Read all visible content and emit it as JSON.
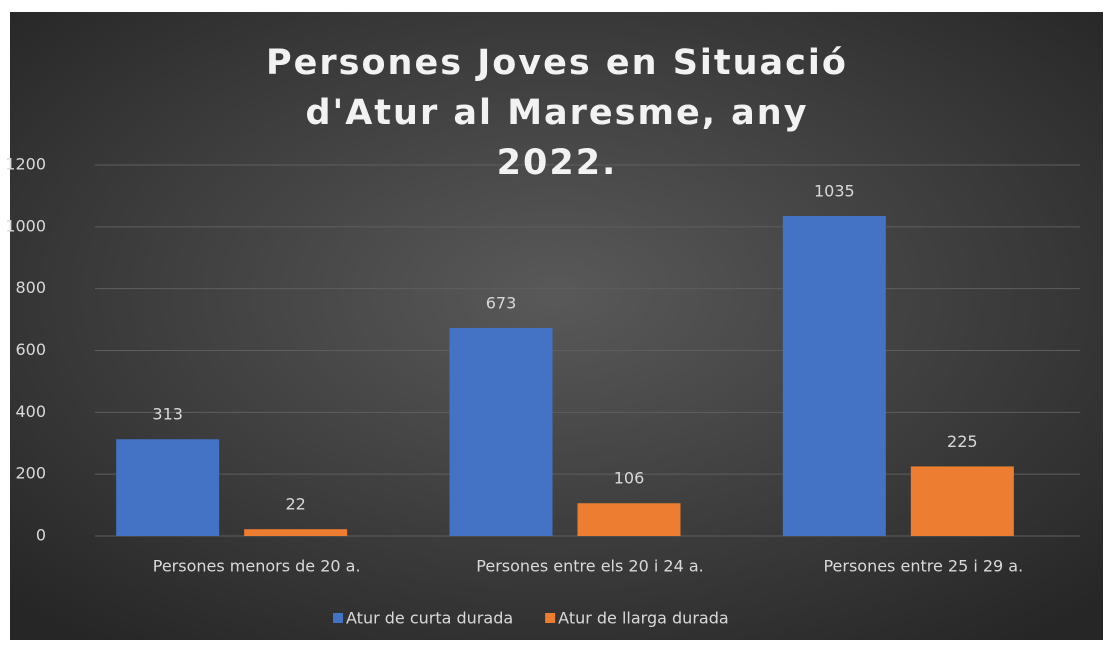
{
  "chart_data": {
    "type": "bar",
    "title": "Persones Joves en Situació d'Atur al Maresme, any 2022.",
    "categories": [
      "Persones menors de 20 a.",
      "Persones entre els 20 i 24 a.",
      "Persones entre 25 i 29 a."
    ],
    "series": [
      {
        "name": "Atur de curta durada",
        "color": "#4472c4",
        "values": [
          313,
          673,
          1035
        ]
      },
      {
        "name": "Atur de llarga durada",
        "color": "#ed7d31",
        "values": [
          22,
          106,
          225
        ]
      }
    ],
    "ylim": [
      0,
      1200
    ],
    "yticks": [
      0,
      200,
      400,
      600,
      800,
      1000,
      1200
    ],
    "grid": true,
    "legend": "bottom"
  }
}
